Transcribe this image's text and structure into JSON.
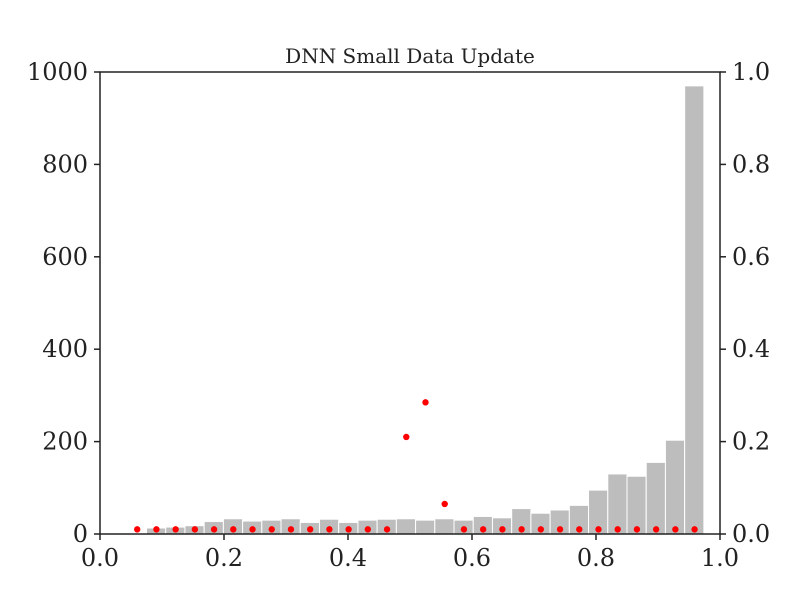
{
  "chart_data": {
    "type": "bar",
    "title": "DNN Small Data Update",
    "xlabel": "",
    "ylabel": "",
    "xlim": [
      0.0,
      1.0
    ],
    "ylim_left": [
      0,
      1000
    ],
    "ylim_right": [
      0.0,
      1.0
    ],
    "x_ticks": [
      "0.0",
      "0.2",
      "0.4",
      "0.6",
      "0.8",
      "1.0"
    ],
    "left_y_ticks": [
      "0",
      "200",
      "400",
      "600",
      "800",
      "1000"
    ],
    "right_y_ticks": [
      "0.0",
      "0.2",
      "0.4",
      "0.6",
      "0.8",
      "1.0"
    ],
    "grid": false,
    "bar_color": "#bdbdbd",
    "point_color": "#ff0000",
    "histogram": {
      "bin_edges": [
        0.075,
        0.106,
        0.137,
        0.168,
        0.199,
        0.23,
        0.261,
        0.292,
        0.323,
        0.354,
        0.385,
        0.416,
        0.447,
        0.478,
        0.509,
        0.54,
        0.571,
        0.602,
        0.633,
        0.664,
        0.695,
        0.726,
        0.757,
        0.788,
        0.819,
        0.85,
        0.881,
        0.912,
        0.943,
        0.974
      ],
      "values": [
        13,
        15,
        18,
        27,
        33,
        28,
        30,
        33,
        25,
        32,
        25,
        30,
        32,
        33,
        30,
        33,
        30,
        38,
        35,
        55,
        45,
        52,
        62,
        95,
        130,
        125,
        155,
        203,
        970
      ]
    },
    "points": {
      "x": [
        0.06,
        0.091,
        0.122,
        0.153,
        0.184,
        0.215,
        0.246,
        0.277,
        0.308,
        0.339,
        0.37,
        0.401,
        0.432,
        0.463,
        0.494,
        0.525,
        0.556,
        0.587,
        0.618,
        0.649,
        0.68,
        0.711,
        0.742,
        0.773,
        0.804,
        0.835,
        0.866,
        0.897,
        0.928,
        0.959
      ],
      "y": [
        0.01,
        0.01,
        0.01,
        0.01,
        0.01,
        0.01,
        0.01,
        0.01,
        0.01,
        0.01,
        0.01,
        0.01,
        0.01,
        0.01,
        0.21,
        0.285,
        0.065,
        0.01,
        0.01,
        0.01,
        0.01,
        0.01,
        0.01,
        0.01,
        0.01,
        0.01,
        0.01,
        0.01,
        0.01,
        0.01
      ]
    }
  }
}
